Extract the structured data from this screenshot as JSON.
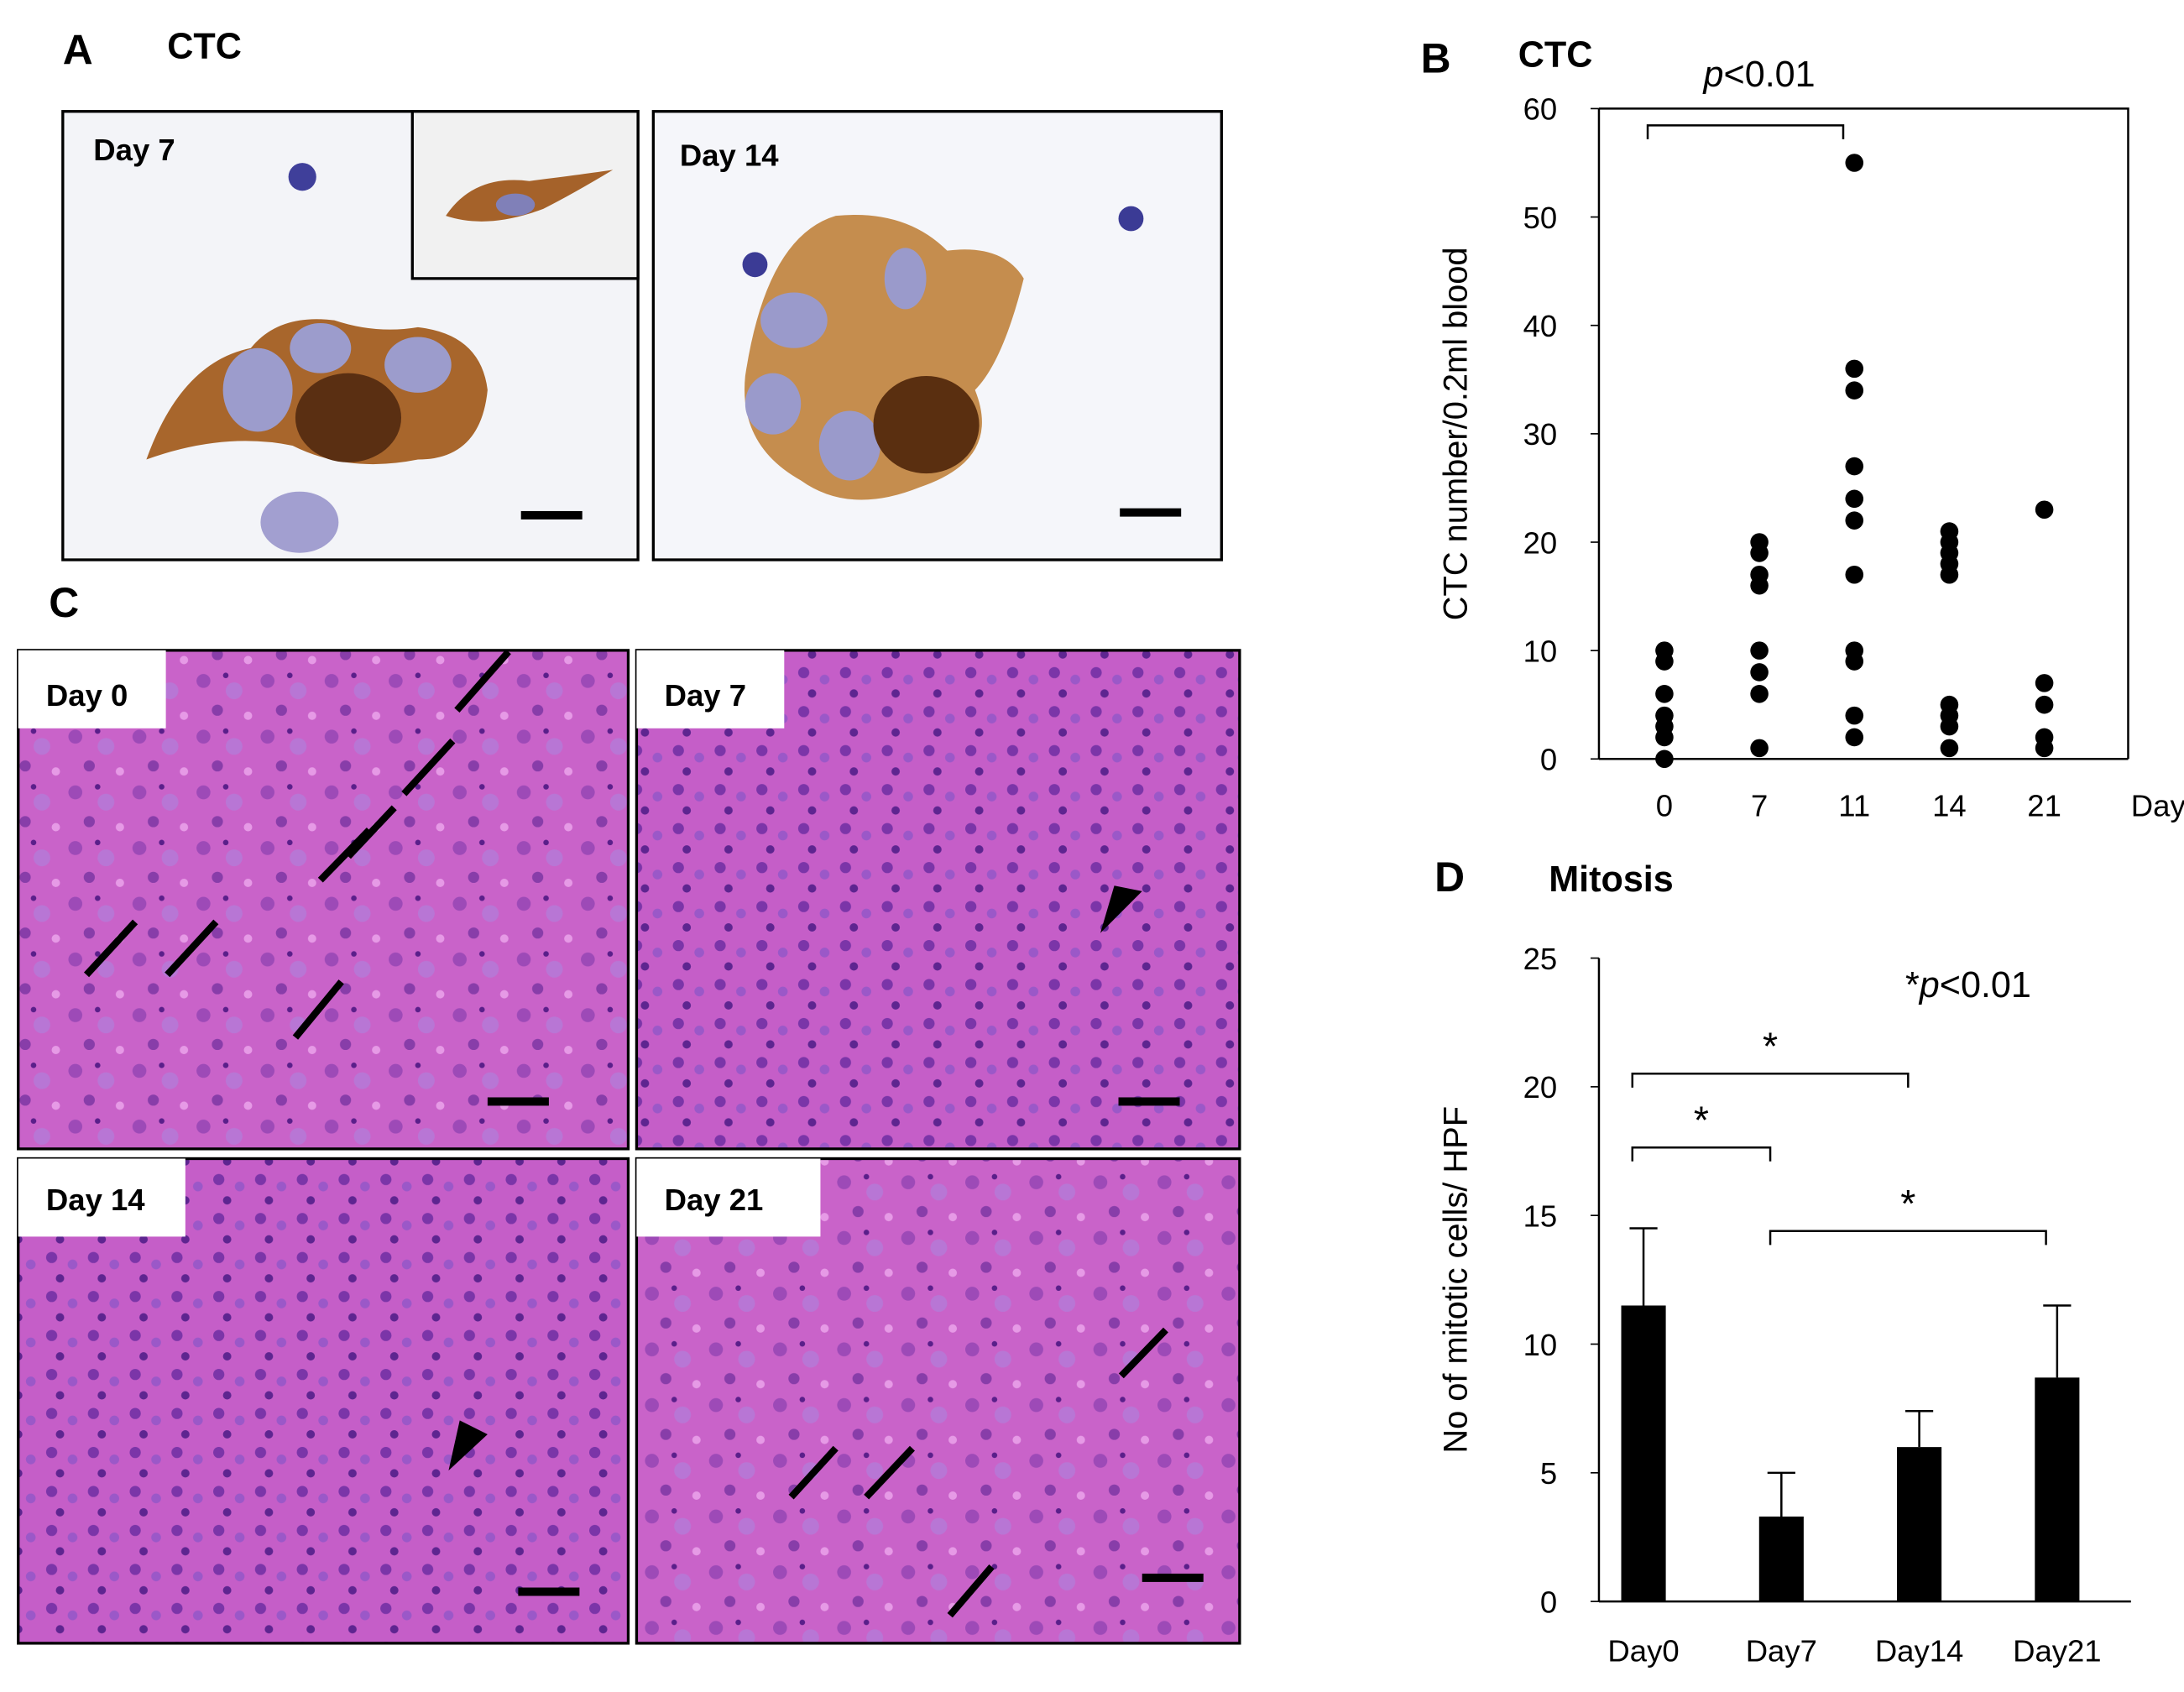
{
  "panels": {
    "A": {
      "label": "A",
      "title": "CTC",
      "images": [
        "Day 7",
        "Day 14"
      ]
    },
    "C": {
      "label": "C",
      "images": [
        "Day 0",
        "Day 7",
        "Day 14",
        "Day 21"
      ]
    }
  },
  "chart_data": [
    {
      "type": "scatter",
      "panel": "B",
      "title": "CTC",
      "ylabel": "CTC number/0.2ml blood",
      "xlabel": "Days",
      "categories": [
        "0",
        "7",
        "11",
        "14",
        "21"
      ],
      "values": [
        [
          10,
          9,
          6,
          4,
          3,
          2,
          0
        ],
        [
          20,
          19,
          17,
          16,
          10,
          8,
          6,
          1
        ],
        [
          55,
          36,
          34,
          27,
          24,
          22,
          17,
          10,
          9,
          4,
          2
        ],
        [
          21,
          20,
          19,
          18,
          17,
          5,
          4,
          3,
          1
        ],
        [
          23,
          7,
          5,
          2,
          1
        ]
      ],
      "color": "#000000",
      "ylim": [
        0,
        60
      ],
      "yticks": [
        0,
        10,
        20,
        30,
        40,
        50,
        60
      ],
      "annotation": {
        "italic": "p",
        "rest": "<0.01",
        "pair": [
          "0",
          "11"
        ]
      }
    },
    {
      "type": "bar",
      "panel": "D",
      "title": "Mitosis",
      "ylabel": "No of mitotic cells/ HPF",
      "categories": [
        "Day0",
        "Day7",
        "Day14",
        "Day21"
      ],
      "values": [
        11.5,
        3.3,
        6.0,
        8.7
      ],
      "errors": [
        3.0,
        1.7,
        1.4,
        2.8
      ],
      "color": "#000000",
      "ylim": [
        0,
        25
      ],
      "yticks": [
        0,
        5,
        10,
        15,
        20,
        25
      ],
      "annotation": {
        "star": "*",
        "italic": "p",
        "rest": "<0.01"
      },
      "significance": [
        {
          "label": "*",
          "pair": [
            "Day0",
            "Day14"
          ]
        },
        {
          "label": "*",
          "pair": [
            "Day0",
            "Day7"
          ]
        },
        {
          "label": "*",
          "pair": [
            "Day7",
            "Day21"
          ]
        }
      ]
    }
  ]
}
